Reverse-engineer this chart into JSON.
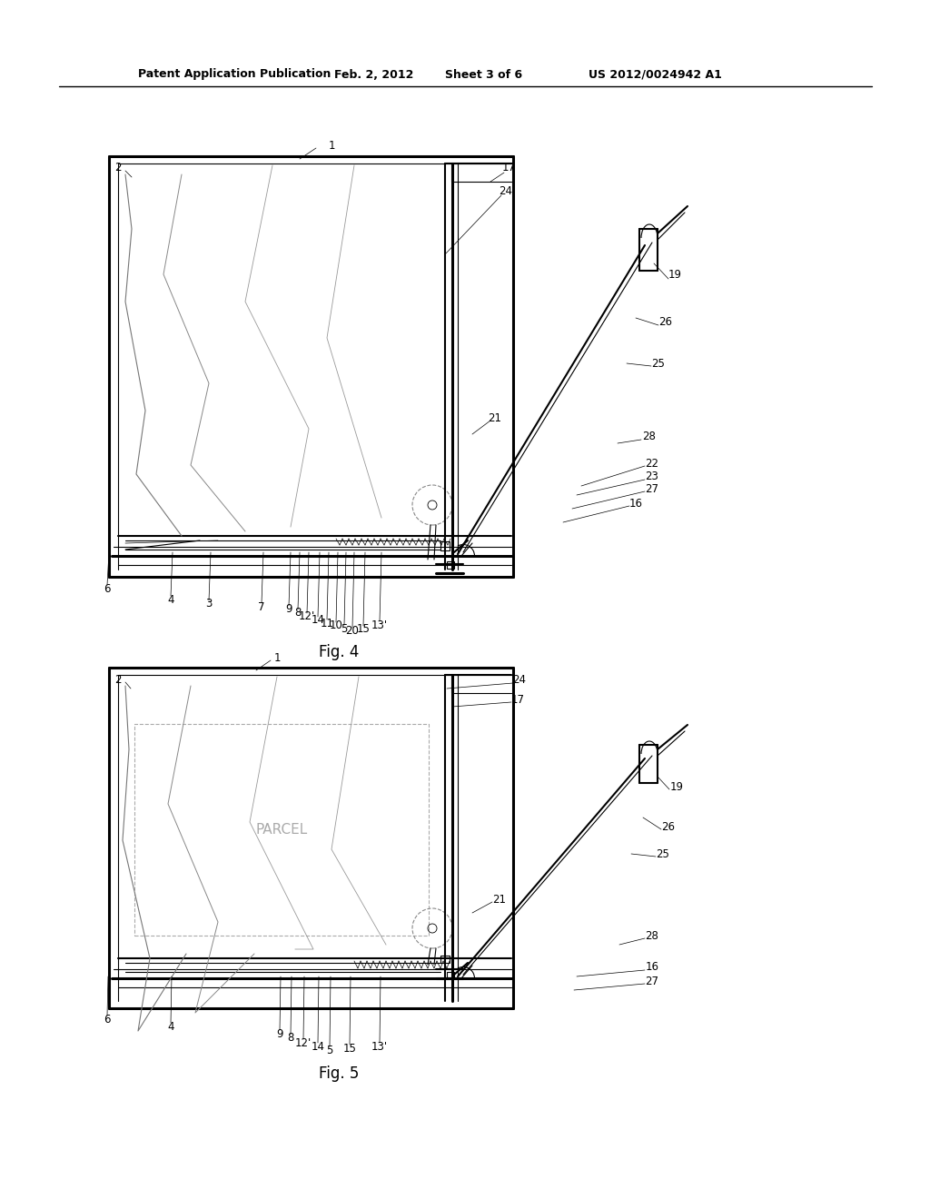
{
  "background_color": "#ffffff",
  "header_text1": "Patent Application Publication",
  "header_text2": "Feb. 2, 2012",
  "header_text3": "Sheet 3 of 6",
  "header_text4": "US 2012/0024942 A1",
  "fig4_caption": "Fig. 4",
  "fig5_caption": "Fig. 5"
}
